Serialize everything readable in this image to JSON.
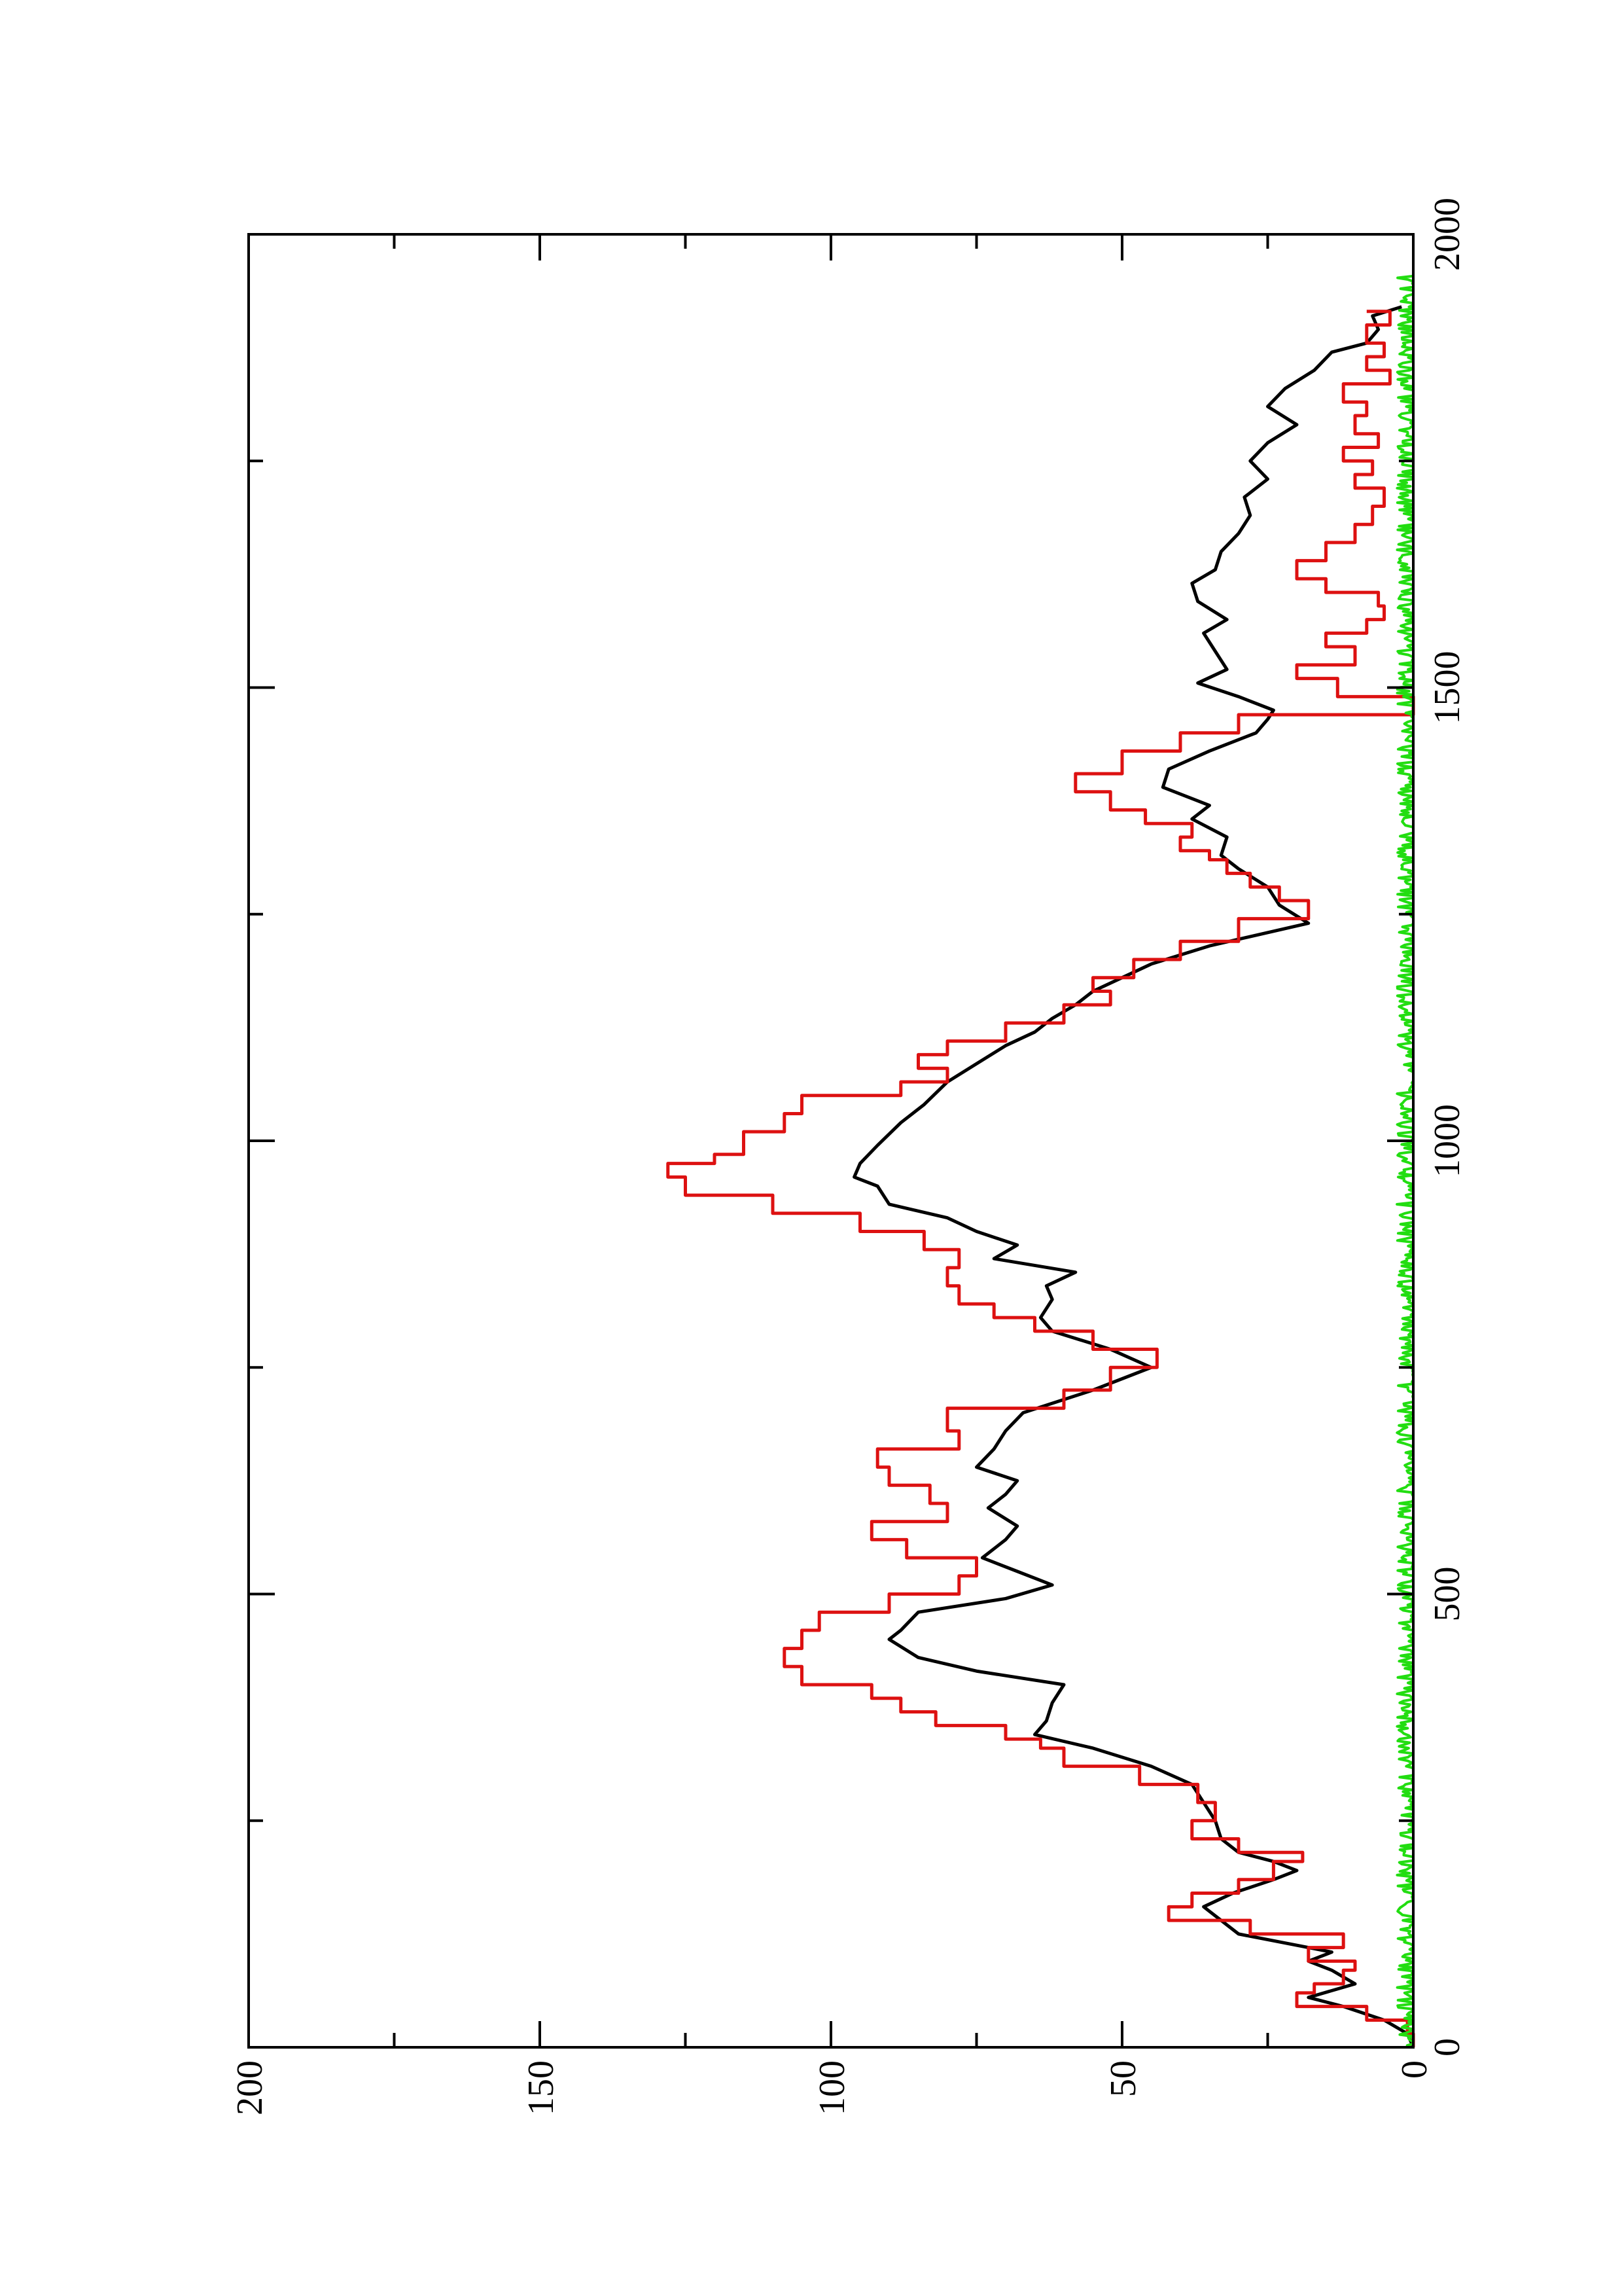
{
  "chart_data": {
    "type": "line",
    "orientation": "rotated-90-clockwise",
    "title": "",
    "xlabel": "",
    "ylabel": "",
    "xlim": [
      0,
      2000
    ],
    "ylim": [
      0,
      200
    ],
    "x_ticks": [
      0,
      500,
      1000,
      1500,
      2000
    ],
    "x_tick_labels": [
      "0",
      "500",
      "1000",
      "1500",
      "2000"
    ],
    "x_minor_ticks": [
      250,
      750,
      1250,
      1750
    ],
    "y_ticks": [
      0,
      50,
      100,
      150,
      200
    ],
    "y_tick_labels": [
      "0",
      "50",
      "100",
      "150",
      "200"
    ],
    "y_minor_ticks": [
      25,
      75,
      125,
      175
    ],
    "grid": false,
    "legend": "none",
    "series": [
      {
        "color": "#000000",
        "style": "line",
        "x": [
          0,
          15,
          30,
          45,
          55,
          70,
          85,
          95,
          105,
          115,
          125,
          140,
          155,
          170,
          185,
          195,
          205,
          215,
          230,
          250,
          270,
          290,
          310,
          330,
          345,
          360,
          380,
          400,
          415,
          430,
          450,
          460,
          480,
          495,
          510,
          525,
          540,
          560,
          575,
          595,
          610,
          625,
          640,
          660,
          680,
          700,
          725,
          750,
          770,
          790,
          805,
          825,
          840,
          855,
          870,
          885,
          900,
          915,
          930,
          950,
          960,
          975,
          995,
          1020,
          1040,
          1065,
          1085,
          1105,
          1120,
          1135,
          1150,
          1165,
          1180,
          1195,
          1215,
          1240,
          1260,
          1280,
          1300,
          1315,
          1335,
          1355,
          1370,
          1390,
          1410,
          1430,
          1450,
          1465,
          1475,
          1490,
          1505,
          1520,
          1540,
          1560,
          1575,
          1595,
          1615,
          1630,
          1650,
          1670,
          1690,
          1710,
          1730,
          1750,
          1770,
          1790,
          1810,
          1830,
          1850,
          1870,
          1880,
          1895,
          1910,
          1920
        ],
        "y": [
          0,
          1,
          5,
          12,
          18,
          10,
          14,
          18,
          14,
          22,
          30,
          33,
          36,
          31,
          24,
          20,
          24,
          30,
          33,
          34,
          36,
          38,
          45,
          55,
          65,
          63,
          62,
          60,
          75,
          85,
          90,
          88,
          85,
          70,
          62,
          68,
          74,
          70,
          68,
          73,
          70,
          68,
          75,
          72,
          70,
          67,
          55,
          45,
          52,
          62,
          64,
          62,
          63,
          58,
          72,
          68,
          75,
          80,
          90,
          92,
          96,
          95,
          92,
          88,
          84,
          80,
          75,
          70,
          65,
          62,
          58,
          55,
          50,
          45,
          35,
          18,
          23,
          25,
          30,
          33,
          32,
          38,
          35,
          43,
          42,
          35,
          27,
          25,
          24,
          30,
          37,
          32,
          34,
          36,
          32,
          37,
          38,
          34,
          33,
          30,
          28,
          29,
          25,
          28,
          25,
          20,
          25,
          22,
          17,
          14,
          8,
          6,
          7,
          2
        ],
        "note_rendering": "values estimated from plot"
      },
      {
        "color": "#dd1111",
        "style": "step",
        "x": [
          0,
          15,
          30,
          45,
          60,
          70,
          85,
          95,
          110,
          125,
          140,
          155,
          170,
          185,
          205,
          215,
          230,
          250,
          270,
          290,
          310,
          330,
          340,
          355,
          370,
          385,
          400,
          420,
          440,
          460,
          480,
          500,
          520,
          540,
          560,
          580,
          600,
          620,
          640,
          660,
          680,
          705,
          725,
          750,
          770,
          790,
          805,
          820,
          840,
          860,
          880,
          900,
          920,
          940,
          960,
          975,
          985,
          1010,
          1030,
          1050,
          1065,
          1080,
          1095,
          1110,
          1130,
          1150,
          1165,
          1180,
          1200,
          1220,
          1245,
          1265,
          1280,
          1295,
          1310,
          1320,
          1335,
          1350,
          1365,
          1385,
          1405,
          1430,
          1450,
          1470,
          1490,
          1510,
          1525,
          1545,
          1560,
          1575,
          1590,
          1605,
          1620,
          1640,
          1660,
          1680,
          1700,
          1720,
          1735,
          1750,
          1765,
          1780,
          1800,
          1815,
          1835,
          1850,
          1865,
          1880,
          1900,
          1915
        ],
        "y": [
          0,
          1,
          8,
          20,
          17,
          12,
          10,
          18,
          12,
          28,
          42,
          38,
          30,
          24,
          19,
          30,
          38,
          34,
          37,
          47,
          60,
          64,
          70,
          82,
          88,
          93,
          105,
          108,
          105,
          102,
          90,
          78,
          75,
          87,
          93,
          80,
          83,
          90,
          92,
          78,
          80,
          60,
          52,
          44,
          55,
          65,
          72,
          78,
          80,
          78,
          84,
          95,
          110,
          125,
          128,
          120,
          115,
          108,
          105,
          88,
          80,
          85,
          80,
          70,
          60,
          52,
          55,
          48,
          40,
          30,
          18,
          23,
          28,
          32,
          35,
          40,
          38,
          46,
          52,
          58,
          50,
          40,
          30,
          0,
          13,
          20,
          10,
          15,
          8,
          5,
          6,
          15,
          20,
          15,
          10,
          7,
          5,
          10,
          7,
          12,
          6,
          10,
          8,
          12,
          4,
          8,
          5,
          8,
          4,
          8
        ],
        "note_rendering": "values estimated from plot"
      },
      {
        "color": "#22dd11",
        "style": "noise",
        "x_start": 0,
        "x_end": 1960,
        "amplitude": 2,
        "baseline": 0.8
      }
    ]
  }
}
